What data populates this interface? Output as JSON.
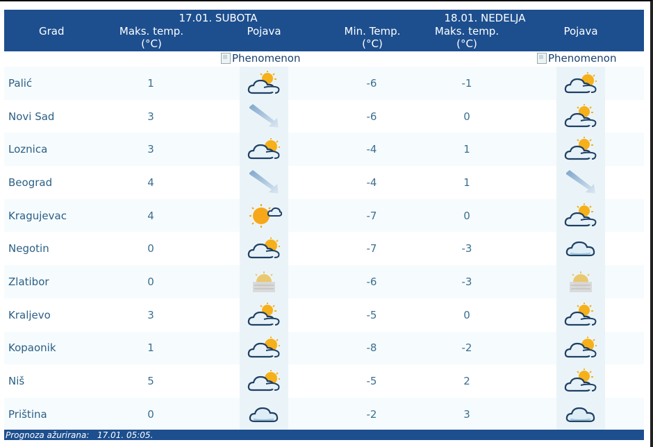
{
  "header": {
    "col_grad": "Grad",
    "day1": "17.01. SUBOTA",
    "day1_max_line1": "Maks. temp.",
    "day1_max_line2": "(°C)",
    "day1_pojava": "Pojava",
    "day2": "18.01. NEDELJA",
    "day2_min_line1": "Min. Temp.",
    "day2_min_line2": "(°C)",
    "day2_max_line1": "Maks. temp.",
    "day2_max_line2": "(°C)",
    "day2_pojava": "Pojava"
  },
  "phenomenon_alt": "Phenomenon",
  "rows": [
    {
      "city": "Palić",
      "max1": "1",
      "icon1": "partly-cloudy-icon",
      "min2": "-6",
      "max2": "-1",
      "icon2": "cloudy-sun-icon"
    },
    {
      "city": "Novi Sad",
      "max1": "3",
      "icon1": "wind-icon",
      "min2": "-6",
      "max2": "0",
      "icon2": "partly-cloudy-icon"
    },
    {
      "city": "Loznica",
      "max1": "3",
      "icon1": "cloudy-sun-icon",
      "min2": "-4",
      "max2": "1",
      "icon2": "partly-cloudy-icon"
    },
    {
      "city": "Beograd",
      "max1": "4",
      "icon1": "wind-icon",
      "min2": "-4",
      "max2": "1",
      "icon2": "wind-icon"
    },
    {
      "city": "Kragujevac",
      "max1": "4",
      "icon1": "sunny-cloud-icon",
      "min2": "-7",
      "max2": "0",
      "icon2": "partly-cloudy-icon"
    },
    {
      "city": "Negotin",
      "max1": "0",
      "icon1": "cloudy-sun-icon",
      "min2": "-7",
      "max2": "-3",
      "icon2": "cloud-icon"
    },
    {
      "city": "Zlatibor",
      "max1": "0",
      "icon1": "fog-icon",
      "min2": "-6",
      "max2": "-3",
      "icon2": "fog-icon"
    },
    {
      "city": "Kraljevo",
      "max1": "3",
      "icon1": "partly-cloudy-icon",
      "min2": "-5",
      "max2": "0",
      "icon2": "partly-cloudy-icon"
    },
    {
      "city": "Kopaonik",
      "max1": "1",
      "icon1": "cloudy-sun-icon",
      "min2": "-8",
      "max2": "-2",
      "icon2": "cloudy-sun-icon"
    },
    {
      "city": "Niš",
      "max1": "5",
      "icon1": "cloudy-sun-icon",
      "min2": "-5",
      "max2": "2",
      "icon2": "partly-cloudy-icon"
    },
    {
      "city": "Priština",
      "max1": "0",
      "icon1": "cloud-icon",
      "min2": "-2",
      "max2": "3",
      "icon2": "cloud-icon"
    }
  ],
  "footer": {
    "label": "Prognoza ažurirana:",
    "value": "17.01. 05:05."
  },
  "colors": {
    "header_bg": "#1d4f8f",
    "icon_cell_bg": "#eaf4f8",
    "text": "#2a5f85"
  }
}
